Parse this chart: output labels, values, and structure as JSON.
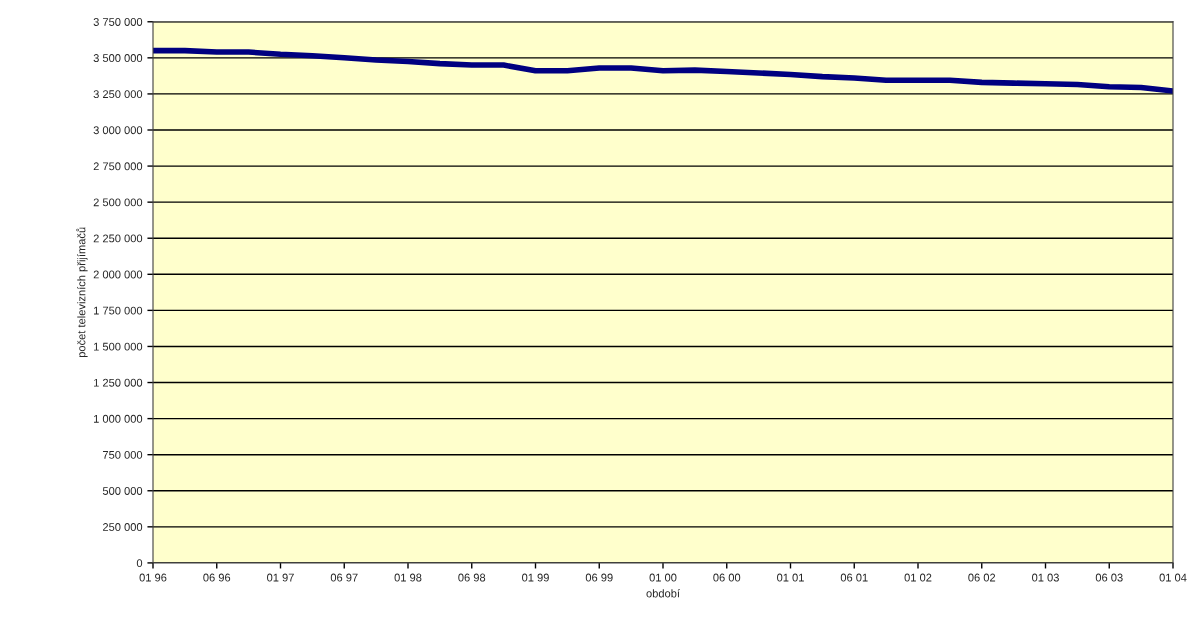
{
  "chart_data": {
    "type": "line",
    "xlabel": "období",
    "ylabel": "počet televizních přijímačů",
    "categories": [
      "01 96",
      null,
      "06 96",
      null,
      "01 97",
      null,
      "06 97",
      null,
      "01 98",
      null,
      "06 98",
      null,
      "01 99",
      null,
      "06 99",
      null,
      "01 00",
      null,
      "06 00",
      null,
      "01 01",
      null,
      "06 01",
      null,
      "01 02",
      null,
      "06 02",
      null,
      "01 03",
      null,
      "06 03",
      null,
      "01 04"
    ],
    "series": [
      {
        "color": "#000080",
        "values": [
          3550000,
          3550000,
          3540000,
          3540000,
          3525000,
          3515000,
          3500000,
          3485000,
          3475000,
          3460000,
          3450000,
          3450000,
          3410000,
          3410000,
          3430000,
          3430000,
          3410000,
          3415000,
          3405000,
          3395000,
          3385000,
          3370000,
          3360000,
          3345000,
          3345000,
          3345000,
          3330000,
          3325000,
          3320000,
          3315000,
          3300000,
          3295000,
          3270000
        ]
      }
    ],
    "ylim": [
      0,
      3750000
    ],
    "yticks": [
      0,
      {
        "value": 250000,
        "label": "250 000"
      },
      {
        "value": 500000,
        "label": "500 000"
      },
      {
        "value": 750000,
        "label": "750 000"
      },
      {
        "value": 1000000,
        "label": "1 000 000"
      },
      {
        "value": 1250000,
        "label": "1 250 000"
      },
      {
        "value": 1500000,
        "label": "1 500 000"
      },
      {
        "value": 1750000,
        "label": "1 750 000"
      },
      {
        "value": 2000000,
        "label": "2 000 000"
      },
      {
        "value": 2250000,
        "label": "2 250 000"
      },
      {
        "value": 2500000,
        "label": "2 500 000"
      },
      {
        "value": 2750000,
        "label": "2 750 000"
      },
      {
        "value": 3000000,
        "label": "3 000 000"
      },
      {
        "value": 3250000,
        "label": "3 250 000"
      },
      {
        "value": 3500000,
        "label": "3 500 000"
      },
      {
        "value": 3750000,
        "label": "3 750 000"
      }
    ],
    "grid": "y",
    "marker": "none",
    "line_style": "solid",
    "legend": false
  }
}
